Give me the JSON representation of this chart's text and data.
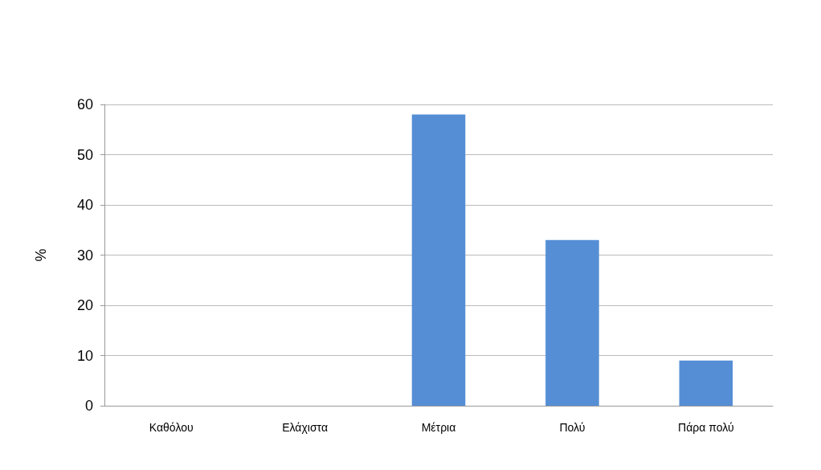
{
  "chart_data": {
    "type": "bar",
    "ylabel": "%",
    "categories": [
      "Καθόλου",
      "Ελάχιστα",
      "Μέτρια",
      "Πολύ",
      "Πάρα πολύ"
    ],
    "values": [
      0,
      0,
      58,
      33,
      9
    ],
    "color": "#558ed5",
    "ylim": [
      0,
      60
    ],
    "yticks": [
      0,
      10,
      20,
      30,
      40,
      50,
      60
    ],
    "grid": "y"
  }
}
